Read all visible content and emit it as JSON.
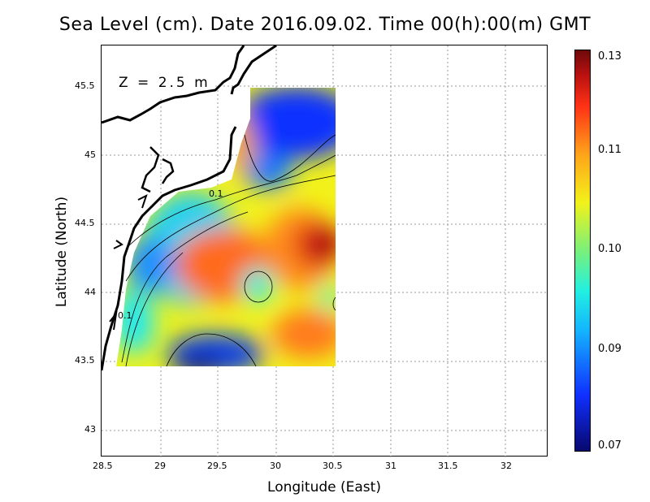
{
  "title": "Sea Level (cm). Date 2016.09.02. Time 00(h):00(m) GMT",
  "depth_label": "Z = 2.5 m",
  "xaxis": {
    "label": "Longitude (East)",
    "ticks": [
      "28.5",
      "29",
      "29.5",
      "30",
      "30.5",
      "31",
      "31.5",
      "32"
    ]
  },
  "yaxis": {
    "label": "Latitude (North)",
    "ticks": [
      "45.5",
      "45",
      "44.5",
      "44",
      "43.5",
      "43"
    ]
  },
  "colorbar": {
    "ticks": [
      "0.13",
      "0.11",
      "0.10",
      "0.09",
      "0.07"
    ]
  },
  "contour_labels": [
    "0.1",
    "0.1"
  ],
  "colors": {
    "high": "#b81010",
    "mid": "#f2f21a",
    "low": "#08086e",
    "land": "#ffffff",
    "coast": "#000000"
  }
}
